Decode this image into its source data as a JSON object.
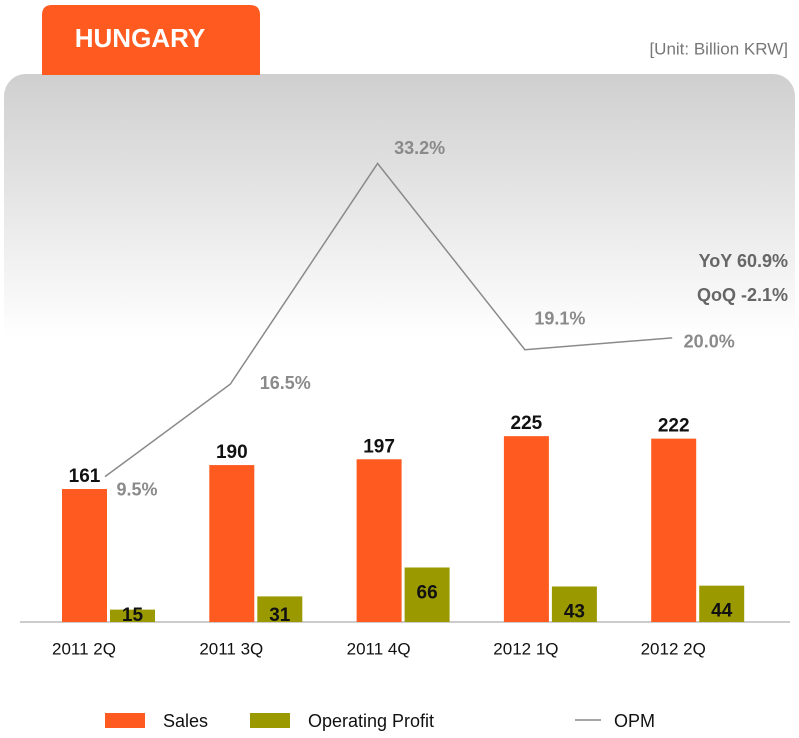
{
  "chart_data": {
    "type": "bar",
    "title": "HUNGARY",
    "subtitle": "[Unit: Billion KRW]",
    "categories": [
      "2011 2Q",
      "2011 3Q",
      "2011 4Q",
      "2012 1Q",
      "2012 2Q"
    ],
    "series": [
      {
        "name": "Sales",
        "color": "#ff5a1f",
        "values": [
          161,
          190,
          197,
          225,
          222
        ]
      },
      {
        "name": "Operating Profit",
        "color": "#9a9a00",
        "values": [
          15,
          31,
          66,
          43,
          44
        ]
      },
      {
        "name": "OPM",
        "color": "#8a8a8a",
        "axis": "y2",
        "values": [
          9.5,
          16.5,
          33.2,
          19.1,
          20.0
        ],
        "value_labels": [
          "9.5%",
          "16.5%",
          "33.2%",
          "19.1%",
          "20.0%"
        ]
      }
    ],
    "ylim": [
      0,
      632
    ],
    "y2lim": [
      -1.5,
      38
    ],
    "annotations": [
      "YoY 60.9%",
      "QoQ -2.1%"
    ]
  }
}
